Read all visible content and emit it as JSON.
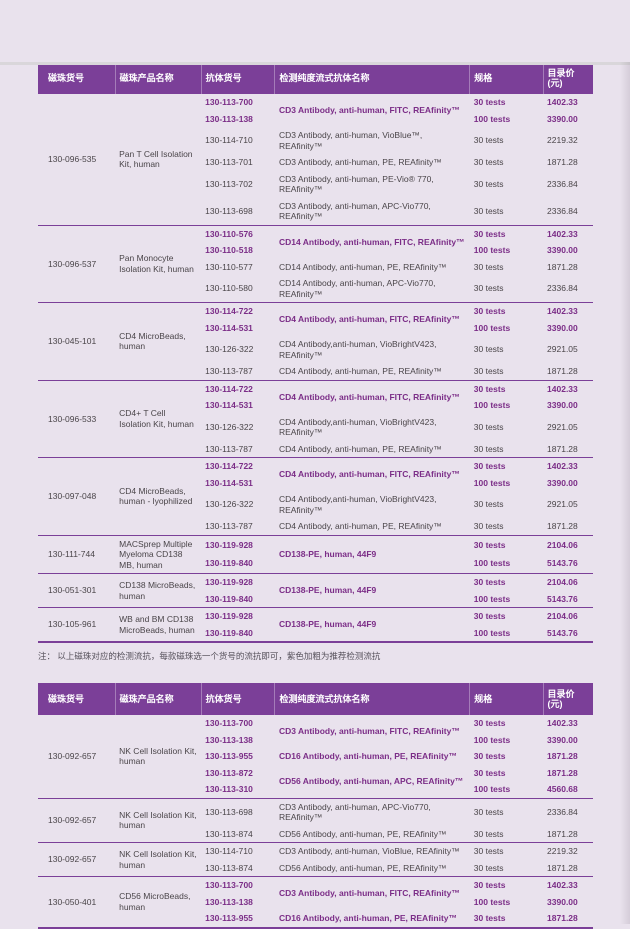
{
  "note": "注： 以上磁珠对应的检测流抗，每款磁珠选一个货号的流抗即可，紫色加粗为推荐检测流抗",
  "columns": [
    "磁珠货号",
    "磁珠产品名称",
    "抗体货号",
    "检测纯度流式抗体名称",
    "规格",
    "目录价(元)"
  ],
  "colors": {
    "accent": "#7b3f98",
    "recommended_text": "#7b2d87",
    "body_text": "#4a4549",
    "header_text": "#ffffff",
    "page_background": "#e9e2ed",
    "top_edge": "#d9d6da"
  },
  "tables": [
    {
      "groups": [
        {
          "bead_id": "130-096-535",
          "product": "Pan T Cell Isolation Kit, human",
          "entries": [
            {
              "bold": true,
              "antibody": "CD3 Antibody, anti-human, FITC, REAfinity™",
              "variants": [
                {
                  "cat": "130-113-700",
                  "spec": "30 tests",
                  "price": "1402.33"
                },
                {
                  "cat": "130-113-138",
                  "spec": "100 tests",
                  "price": "3390.00"
                }
              ]
            },
            {
              "bold": false,
              "antibody": "CD3 Antibody, anti-human, VioBlue™, REAfinity™",
              "variants": [
                {
                  "cat": "130-114-710",
                  "spec": "30 tests",
                  "price": "2219.32"
                }
              ]
            },
            {
              "bold": false,
              "antibody": "CD3 Antibody, anti-human, PE, REAfinity™",
              "variants": [
                {
                  "cat": "130-113-701",
                  "spec": "30 tests",
                  "price": "1871.28"
                }
              ]
            },
            {
              "bold": false,
              "antibody": "CD3 Antibody, anti-human, PE-Vio® 770, REAfinity™",
              "variants": [
                {
                  "cat": "130-113-702",
                  "spec": "30 tests",
                  "price": "2336.84"
                }
              ]
            },
            {
              "bold": false,
              "antibody": "CD3 Antibody, anti-human, APC-Vio770, REAfinity™",
              "variants": [
                {
                  "cat": "130-113-698",
                  "spec": "30 tests",
                  "price": "2336.84"
                }
              ]
            }
          ]
        },
        {
          "bead_id": "130-096-537",
          "product": "Pan Monocyte Isolation Kit, human",
          "entries": [
            {
              "bold": true,
              "antibody": "CD14 Antibody, anti-human, FITC, REAfinity™",
              "variants": [
                {
                  "cat": "130-110-576",
                  "spec": "30 tests",
                  "price": "1402.33"
                },
                {
                  "cat": "130-110-518",
                  "spec": "100 tests",
                  "price": "3390.00"
                }
              ]
            },
            {
              "bold": false,
              "antibody": "CD14 Antibody, anti-human, PE, REAfinity™",
              "variants": [
                {
                  "cat": "130-110-577",
                  "spec": "30 tests",
                  "price": "1871.28"
                }
              ]
            },
            {
              "bold": false,
              "antibody": "CD14 Antibody, anti-human, APC-Vio770, REAfinity™",
              "variants": [
                {
                  "cat": "130-110-580",
                  "spec": "30 tests",
                  "price": "2336.84"
                }
              ]
            }
          ]
        },
        {
          "bead_id": "130-045-101",
          "product": "CD4 MicroBeads, human",
          "entries": [
            {
              "bold": true,
              "antibody": "CD4 Antibody, anti-human, FITC, REAfinity™",
              "variants": [
                {
                  "cat": "130-114-722",
                  "spec": "30 tests",
                  "price": "1402.33"
                },
                {
                  "cat": "130-114-531",
                  "spec": "100 tests",
                  "price": "3390.00"
                }
              ]
            },
            {
              "bold": false,
              "antibody": "CD4 Antibody,anti-human, VioBrightV423, REAfinity™",
              "variants": [
                {
                  "cat": "130-126-322",
                  "spec": "30 tests",
                  "price": "2921.05"
                }
              ]
            },
            {
              "bold": false,
              "antibody": "CD4 Antibody, anti-human, PE, REAfinity™",
              "variants": [
                {
                  "cat": "130-113-787",
                  "spec": "30 tests",
                  "price": "1871.28"
                }
              ]
            }
          ]
        },
        {
          "bead_id": "130-096-533",
          "product": "CD4+ T Cell Isolation Kit, human",
          "entries": [
            {
              "bold": true,
              "antibody": "CD4 Antibody, anti-human, FITC, REAfinity™",
              "variants": [
                {
                  "cat": "130-114-722",
                  "spec": "30 tests",
                  "price": "1402.33"
                },
                {
                  "cat": "130-114-531",
                  "spec": "100 tests",
                  "price": "3390.00"
                }
              ]
            },
            {
              "bold": false,
              "antibody": "CD4 Antibody,anti-human, VioBrightV423, REAfinity™",
              "variants": [
                {
                  "cat": "130-126-322",
                  "spec": "30 tests",
                  "price": "2921.05"
                }
              ]
            },
            {
              "bold": false,
              "antibody": "CD4 Antibody, anti-human, PE, REAfinity™",
              "variants": [
                {
                  "cat": "130-113-787",
                  "spec": "30 tests",
                  "price": "1871.28"
                }
              ]
            }
          ]
        },
        {
          "bead_id": "130-097-048",
          "product": "CD4 MicroBeads, human - lyophilized",
          "entries": [
            {
              "bold": true,
              "antibody": "CD4 Antibody, anti-human, FITC, REAfinity™",
              "variants": [
                {
                  "cat": "130-114-722",
                  "spec": "30 tests",
                  "price": "1402.33"
                },
                {
                  "cat": "130-114-531",
                  "spec": "100 tests",
                  "price": "3390.00"
                }
              ]
            },
            {
              "bold": false,
              "antibody": "CD4 Antibody,anti-human, VioBrightV423, REAfinity™",
              "variants": [
                {
                  "cat": "130-126-322",
                  "spec": "30 tests",
                  "price": "2921.05"
                }
              ]
            },
            {
              "bold": false,
              "antibody": "CD4 Antibody, anti-human, PE, REAfinity™",
              "variants": [
                {
                  "cat": "130-113-787",
                  "spec": "30 tests",
                  "price": "1871.28"
                }
              ]
            }
          ]
        },
        {
          "bead_id": "130-111-744",
          "product": "MACSprep Multiple Myeloma CD138 MB, human",
          "entries": [
            {
              "bold": true,
              "antibody": "CD138-PE, human, 44F9",
              "variants": [
                {
                  "cat": "130-119-928",
                  "spec": "30 tests",
                  "price": "2104.06"
                },
                {
                  "cat": "130-119-840",
                  "spec": "100 tests",
                  "price": "5143.76"
                }
              ]
            }
          ]
        },
        {
          "bead_id": "130-051-301",
          "product": "CD138 MicroBeads, human",
          "entries": [
            {
              "bold": true,
              "antibody": "CD138-PE, human, 44F9",
              "variants": [
                {
                  "cat": "130-119-928",
                  "spec": "30 tests",
                  "price": "2104.06"
                },
                {
                  "cat": "130-119-840",
                  "spec": "100 tests",
                  "price": "5143.76"
                }
              ]
            }
          ]
        },
        {
          "bead_id": "130-105-961",
          "product": "WB and BM CD138 MicroBeads, human",
          "entries": [
            {
              "bold": true,
              "antibody": "CD138-PE, human, 44F9",
              "variants": [
                {
                  "cat": "130-119-928",
                  "spec": "30 tests",
                  "price": "2104.06"
                },
                {
                  "cat": "130-119-840",
                  "spec": "100 tests",
                  "price": "5143.76"
                }
              ]
            }
          ]
        }
      ]
    },
    {
      "groups": [
        {
          "bead_id": "130-092-657",
          "product": "NK Cell Isolation Kit, human",
          "entries": [
            {
              "bold": true,
              "antibody": "CD3 Antibody, anti-human, FITC, REAfinity™",
              "variants": [
                {
                  "cat": "130-113-700",
                  "spec": "30 tests",
                  "price": "1402.33"
                },
                {
                  "cat": "130-113-138",
                  "spec": "100 tests",
                  "price": "3390.00"
                }
              ]
            },
            {
              "bold": true,
              "antibody": "CD16 Antibody, anti-human, PE, REAfinity™",
              "variants": [
                {
                  "cat": "130-113-955",
                  "spec": "30 tests",
                  "price": "1871.28"
                }
              ]
            },
            {
              "bold": true,
              "antibody": "CD56 Antibody, anti-human, APC, REAfinity™",
              "variants": [
                {
                  "cat": "130-113-872",
                  "spec": "30 tests",
                  "price": "1871.28"
                },
                {
                  "cat": "130-113-310",
                  "spec": "100 tests",
                  "price": "4560.68"
                }
              ]
            }
          ]
        },
        {
          "bead_id": "130-092-657",
          "product": "NK Cell Isolation Kit, human",
          "entries": [
            {
              "bold": false,
              "antibody": "CD3 Antibody, anti-human, APC-Vio770, REAfinity™",
              "variants": [
                {
                  "cat": "130-113-698",
                  "spec": "30 tests",
                  "price": "2336.84"
                }
              ]
            },
            {
              "bold": false,
              "antibody": "CD56 Antibody, anti-human, PE, REAfinity™",
              "variants": [
                {
                  "cat": "130-113-874",
                  "spec": "30 tests",
                  "price": "1871.28"
                }
              ]
            }
          ]
        },
        {
          "bead_id": "130-092-657",
          "product": "NK Cell Isolation Kit, human",
          "entries": [
            {
              "bold": false,
              "antibody": "CD3 Antibody, anti-human, VioBlue, REAfinity™",
              "variants": [
                {
                  "cat": "130-114-710",
                  "spec": "30 tests",
                  "price": "2219.32"
                }
              ]
            },
            {
              "bold": false,
              "antibody": "CD56 Antibody, anti-human, PE, REAfinity™",
              "variants": [
                {
                  "cat": "130-113-874",
                  "spec": "30 tests",
                  "price": "1871.28"
                }
              ]
            }
          ]
        },
        {
          "bead_id": "130-050-401",
          "product": "CD56 MicroBeads, human",
          "entries": [
            {
              "bold": true,
              "antibody": "CD3 Antibody, anti-human, FITC, REAfinity™",
              "variants": [
                {
                  "cat": "130-113-700",
                  "spec": "30 tests",
                  "price": "1402.33"
                },
                {
                  "cat": "130-113-138",
                  "spec": "100 tests",
                  "price": "3390.00"
                }
              ]
            },
            {
              "bold": true,
              "antibody": "CD16 Antibody, anti-human, PE, REAfinity™",
              "variants": [
                {
                  "cat": "130-113-955",
                  "spec": "30 tests",
                  "price": "1871.28"
                }
              ]
            }
          ]
        }
      ]
    }
  ]
}
